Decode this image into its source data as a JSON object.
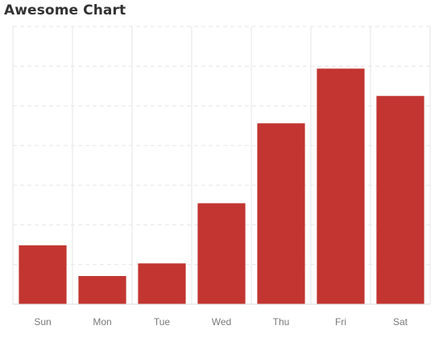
{
  "chart_data": {
    "type": "bar",
    "title": "Awesome Chart",
    "xlabel": "",
    "ylabel": "",
    "categories": [
      "Sun",
      "Mon",
      "Tue",
      "Wed",
      "Thu",
      "Fri",
      "Sat"
    ],
    "values": [
      14,
      6.7,
      9.7,
      24,
      43,
      56,
      49.5
    ],
    "ylim": [
      0,
      66
    ],
    "grid": true,
    "legend": "none",
    "colors": {
      "bar": "#c23531",
      "grid": "#e6e6e6",
      "axis": "#dcdcdc",
      "tick_text": "#7a7a7a",
      "title": "#333333"
    }
  }
}
